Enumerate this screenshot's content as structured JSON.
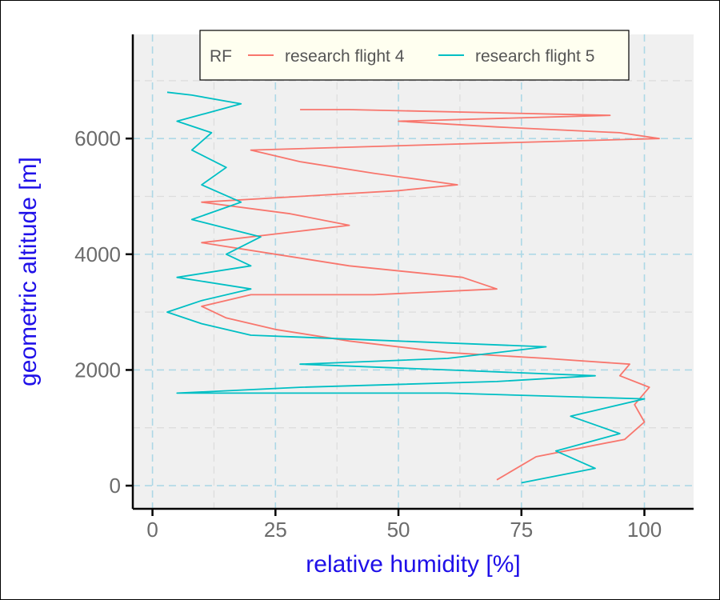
{
  "chart_data": {
    "type": "line",
    "xlabel": "relative humidity [%]",
    "ylabel": "geometric altitude [m]",
    "xlim": [
      -4,
      110
    ],
    "ylim": [
      -400,
      7800
    ],
    "x_ticks": [
      0,
      25,
      50,
      75,
      100
    ],
    "y_ticks": [
      0,
      2000,
      4000,
      6000
    ],
    "x_tick_labels": [
      "0",
      "25",
      "50",
      "75",
      "100"
    ],
    "y_tick_labels": [
      "0",
      "2000",
      "4000",
      "6000"
    ],
    "grid": true,
    "legend": {
      "title": "RF",
      "position": "top",
      "entries": [
        "research flight 4",
        "research flight 5"
      ]
    },
    "colors": {
      "research flight 4": "#f8766d",
      "research flight 5": "#00bfc4",
      "panel_background": "#f0f0f0",
      "major_grid": "#add8e6",
      "legend_background": "#fffff0",
      "axis_title": "#1f10e8"
    },
    "series": [
      {
        "name": "research flight 4",
        "points": [
          [
            70,
            100
          ],
          [
            78,
            500
          ],
          [
            96,
            800
          ],
          [
            100,
            1100
          ],
          [
            98,
            1400
          ],
          [
            101,
            1700
          ],
          [
            95,
            1900
          ],
          [
            97,
            2100
          ],
          [
            80,
            2200
          ],
          [
            60,
            2300
          ],
          [
            40,
            2500
          ],
          [
            25,
            2700
          ],
          [
            15,
            2900
          ],
          [
            10,
            3100
          ],
          [
            20,
            3300
          ],
          [
            45,
            3300
          ],
          [
            70,
            3400
          ],
          [
            63,
            3600
          ],
          [
            40,
            3800
          ],
          [
            25,
            4000
          ],
          [
            10,
            4200
          ],
          [
            30,
            4400
          ],
          [
            40,
            4500
          ],
          [
            28,
            4700
          ],
          [
            10,
            4900
          ],
          [
            30,
            5000
          ],
          [
            50,
            5100
          ],
          [
            62,
            5200
          ],
          [
            45,
            5400
          ],
          [
            30,
            5600
          ],
          [
            20,
            5800
          ],
          [
            60,
            5900
          ],
          [
            103,
            6000
          ],
          [
            95,
            6100
          ],
          [
            70,
            6200
          ],
          [
            50,
            6300
          ],
          [
            93,
            6400
          ],
          [
            40,
            6500
          ],
          [
            30,
            6500
          ]
        ]
      },
      {
        "name": "research flight 5",
        "points": [
          [
            75,
            50
          ],
          [
            90,
            300
          ],
          [
            82,
            600
          ],
          [
            95,
            900
          ],
          [
            85,
            1200
          ],
          [
            100,
            1500
          ],
          [
            60,
            1600
          ],
          [
            5,
            1600
          ],
          [
            30,
            1700
          ],
          [
            70,
            1800
          ],
          [
            90,
            1900
          ],
          [
            60,
            2000
          ],
          [
            30,
            2100
          ],
          [
            60,
            2200
          ],
          [
            80,
            2400
          ],
          [
            50,
            2500
          ],
          [
            20,
            2600
          ],
          [
            10,
            2800
          ],
          [
            3,
            3000
          ],
          [
            10,
            3200
          ],
          [
            20,
            3400
          ],
          [
            5,
            3600
          ],
          [
            20,
            3800
          ],
          [
            15,
            4000
          ],
          [
            22,
            4300
          ],
          [
            8,
            4600
          ],
          [
            18,
            4900
          ],
          [
            10,
            5200
          ],
          [
            15,
            5500
          ],
          [
            8,
            5800
          ],
          [
            12,
            6100
          ],
          [
            5,
            6300
          ],
          [
            18,
            6600
          ],
          [
            8,
            6750
          ],
          [
            3,
            6800
          ]
        ]
      }
    ]
  }
}
